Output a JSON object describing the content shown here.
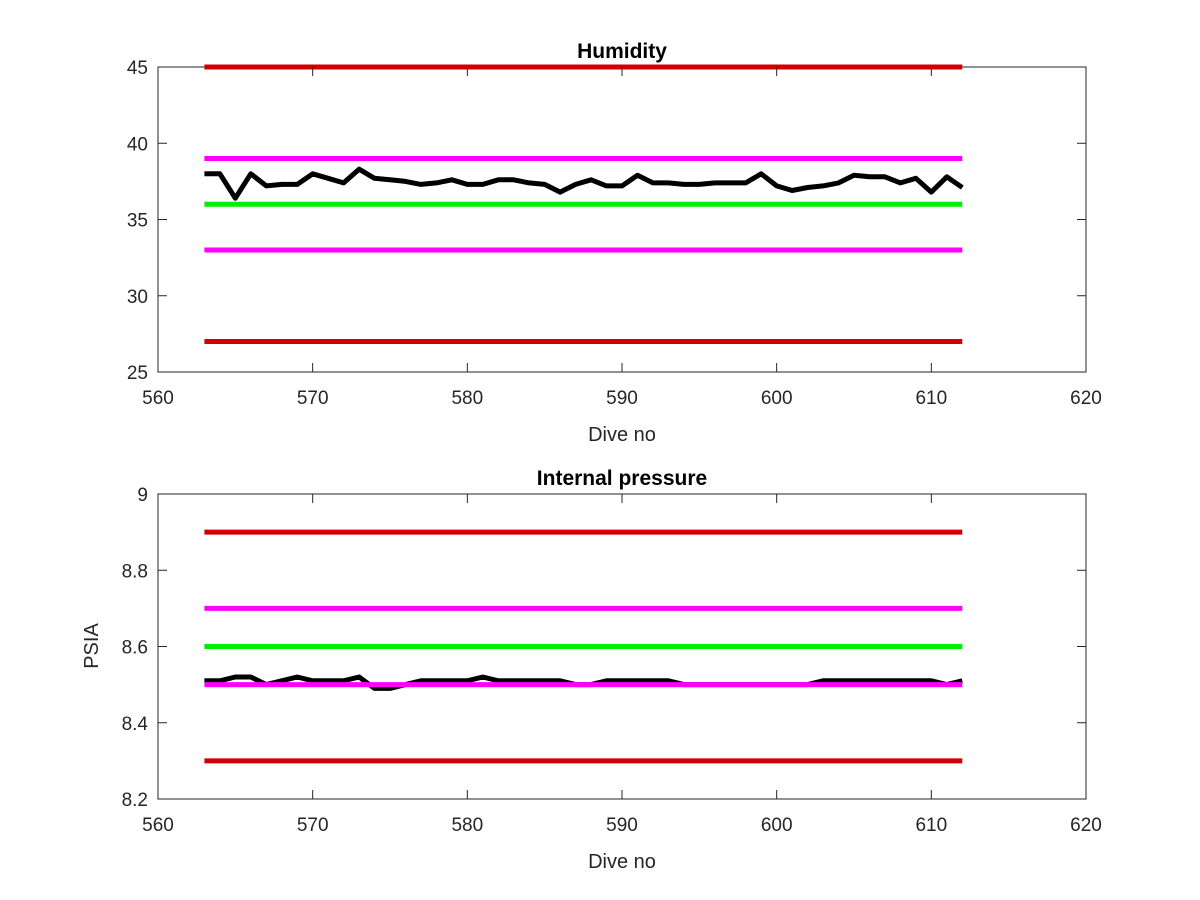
{
  "chart_data": [
    {
      "type": "line",
      "title": "Humidity",
      "xlabel": "Dive no",
      "ylabel": "",
      "xlim": [
        560,
        620
      ],
      "ylim": [
        25,
        45
      ],
      "xticks": [
        "560",
        "570",
        "580",
        "590",
        "600",
        "610",
        "620"
      ],
      "yticks": [
        "25",
        "30",
        "35",
        "40",
        "45"
      ],
      "grid": false,
      "series": [
        {
          "role": "upper-limit",
          "color": "#d00000",
          "x": [
            563,
            612
          ],
          "y": [
            45,
            45
          ]
        },
        {
          "role": "upper-warning",
          "color": "#ff00ff",
          "x": [
            563,
            612
          ],
          "y": [
            39,
            39
          ]
        },
        {
          "role": "target",
          "color": "#00ee00",
          "x": [
            563,
            612
          ],
          "y": [
            36,
            36
          ]
        },
        {
          "role": "lower-warning",
          "color": "#ff00ff",
          "x": [
            563,
            612
          ],
          "y": [
            33,
            33
          ]
        },
        {
          "role": "lower-limit",
          "color": "#d00000",
          "x": [
            563,
            612
          ],
          "y": [
            27,
            27
          ]
        },
        {
          "role": "measured",
          "color": "#000000",
          "x": [
            563,
            564,
            565,
            566,
            567,
            568,
            569,
            570,
            571,
            572,
            573,
            574,
            575,
            576,
            577,
            578,
            579,
            580,
            581,
            582,
            583,
            584,
            585,
            586,
            587,
            588,
            589,
            590,
            591,
            592,
            593,
            594,
            595,
            596,
            597,
            598,
            599,
            600,
            601,
            602,
            603,
            604,
            605,
            606,
            607,
            608,
            609,
            610,
            611,
            612
          ],
          "y": [
            38.0,
            38.0,
            36.4,
            38.0,
            37.2,
            37.3,
            37.3,
            38.0,
            37.7,
            37.4,
            38.3,
            37.7,
            37.6,
            37.5,
            37.3,
            37.4,
            37.6,
            37.3,
            37.3,
            37.6,
            37.6,
            37.4,
            37.3,
            36.8,
            37.3,
            37.6,
            37.2,
            37.2,
            37.9,
            37.4,
            37.4,
            37.3,
            37.3,
            37.4,
            37.4,
            37.4,
            38.0,
            37.2,
            36.9,
            37.1,
            37.2,
            37.4,
            37.9,
            37.8,
            37.8,
            37.4,
            37.7,
            36.8,
            37.8,
            37.1
          ]
        }
      ]
    },
    {
      "type": "line",
      "title": "Internal pressure",
      "xlabel": "Dive no",
      "ylabel": "PSIA",
      "xlim": [
        560,
        620
      ],
      "ylim": [
        8.2,
        9
      ],
      "xticks": [
        "560",
        "570",
        "580",
        "590",
        "600",
        "610",
        "620"
      ],
      "yticks": [
        "8.2",
        "8.4",
        "8.6",
        "8.8",
        "9"
      ],
      "grid": false,
      "series": [
        {
          "role": "upper-limit",
          "color": "#d00000",
          "x": [
            563,
            612
          ],
          "y": [
            8.9,
            8.9
          ]
        },
        {
          "role": "upper-warning",
          "color": "#ff00ff",
          "x": [
            563,
            612
          ],
          "y": [
            8.7,
            8.7
          ]
        },
        {
          "role": "target",
          "color": "#00ee00",
          "x": [
            563,
            612
          ],
          "y": [
            8.6,
            8.6
          ]
        },
        {
          "role": "measured",
          "color": "#000000",
          "x": [
            563,
            564,
            565,
            566,
            567,
            568,
            569,
            570,
            571,
            572,
            573,
            574,
            575,
            576,
            577,
            578,
            579,
            580,
            581,
            582,
            583,
            584,
            585,
            586,
            587,
            588,
            589,
            590,
            591,
            592,
            593,
            594,
            595,
            596,
            597,
            598,
            599,
            600,
            601,
            602,
            603,
            604,
            605,
            606,
            607,
            608,
            609,
            610,
            611,
            612
          ],
          "y": [
            8.51,
            8.51,
            8.52,
            8.52,
            8.5,
            8.51,
            8.52,
            8.51,
            8.51,
            8.51,
            8.52,
            8.49,
            8.49,
            8.5,
            8.51,
            8.51,
            8.51,
            8.51,
            8.52,
            8.51,
            8.51,
            8.51,
            8.51,
            8.51,
            8.5,
            8.5,
            8.51,
            8.51,
            8.51,
            8.51,
            8.51,
            8.5,
            8.5,
            8.5,
            8.5,
            8.5,
            8.5,
            8.5,
            8.5,
            8.5,
            8.51,
            8.51,
            8.51,
            8.51,
            8.51,
            8.51,
            8.51,
            8.51,
            8.5,
            8.51
          ]
        },
        {
          "role": "lower-warning",
          "color": "#ff00ff",
          "x": [
            563,
            612
          ],
          "y": [
            8.5,
            8.5
          ]
        },
        {
          "role": "lower-limit",
          "color": "#d00000",
          "x": [
            563,
            612
          ],
          "y": [
            8.3,
            8.3
          ]
        }
      ]
    }
  ]
}
